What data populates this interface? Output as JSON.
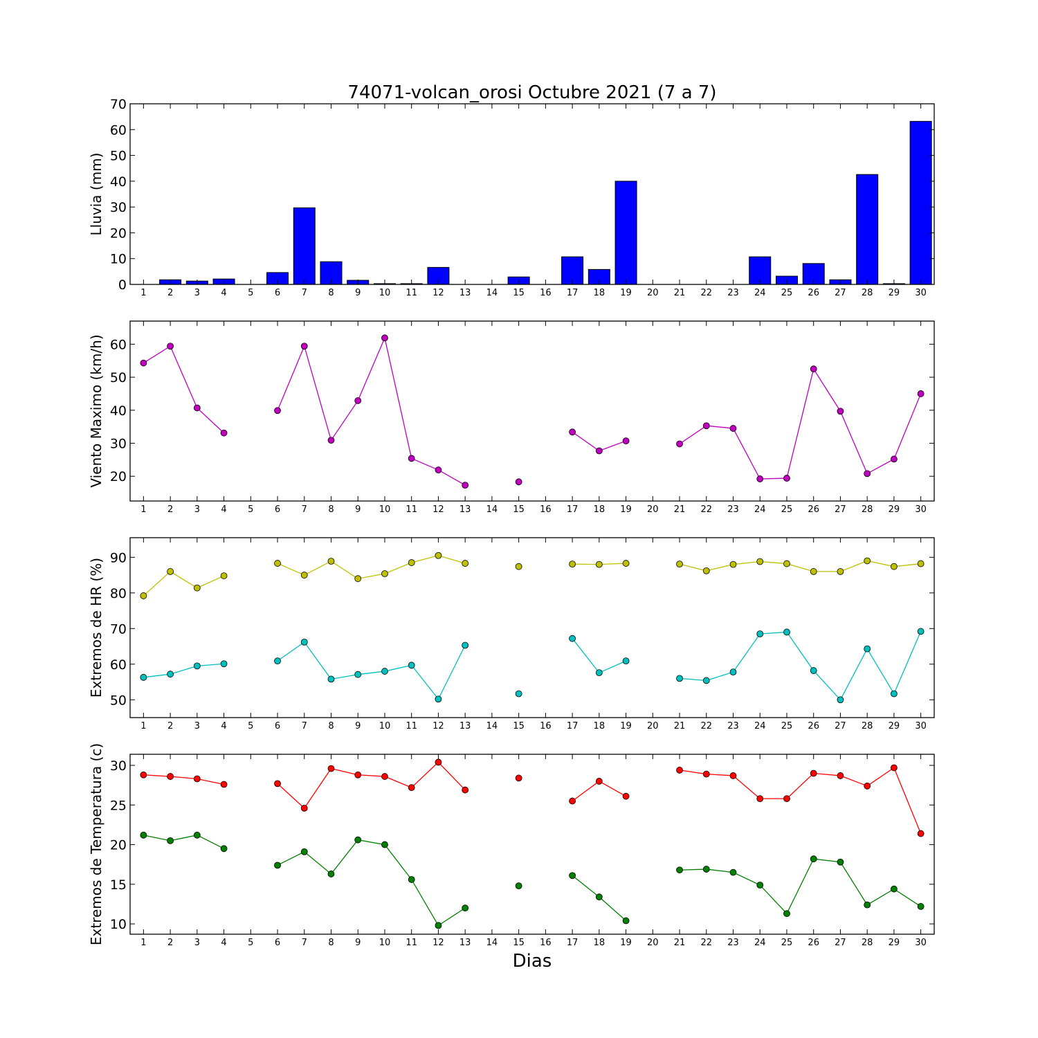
{
  "figure": {
    "title": "74071-volcan_orosi Octubre 2021  (7 a 7)",
    "xlabel": "Dias"
  },
  "chart_data": [
    {
      "type": "bar",
      "ylabel": "Lluvia (mm)",
      "ylim": [
        0,
        70
      ],
      "yticks": [
        0,
        10,
        20,
        30,
        40,
        50,
        60,
        70
      ],
      "xlim": [
        0.5,
        30.5
      ],
      "categories": [
        1,
        2,
        3,
        4,
        5,
        6,
        7,
        8,
        9,
        10,
        11,
        12,
        13,
        14,
        15,
        16,
        17,
        18,
        19,
        20,
        21,
        22,
        23,
        24,
        25,
        26,
        27,
        28,
        29,
        30
      ],
      "values": [
        0,
        1.8,
        1.3,
        2.1,
        0,
        4.6,
        29.7,
        8.8,
        1.6,
        0.3,
        0.3,
        6.6,
        0,
        0,
        2.9,
        0,
        10.7,
        5.8,
        40.0,
        0,
        0,
        0,
        0,
        10.7,
        3.2,
        8.1,
        1.8,
        42.6,
        0.3,
        63.2
      ],
      "color": "#0000ff"
    },
    {
      "type": "line",
      "ylabel": "Viento Maximo (km/h)",
      "ylim": [
        12.5,
        67
      ],
      "yticks": [
        20,
        30,
        40,
        50,
        60
      ],
      "xlim": [
        0.5,
        30.5
      ],
      "x": [
        1,
        2,
        3,
        4,
        5,
        6,
        7,
        8,
        9,
        10,
        11,
        12,
        13,
        14,
        15,
        16,
        17,
        18,
        19,
        20,
        21,
        22,
        23,
        24,
        25,
        26,
        27,
        28,
        29,
        30
      ],
      "series": [
        {
          "color": "#bf00bf",
          "values": [
            54.3,
            59.4,
            40.7,
            33.1,
            null,
            39.9,
            59.4,
            30.9,
            42.9,
            61.9,
            25.4,
            21.9,
            17.3,
            null,
            18.3,
            null,
            33.4,
            27.7,
            30.7,
            null,
            29.8,
            35.3,
            34.5,
            19.2,
            19.4,
            52.5,
            39.7,
            20.8,
            25.2,
            45.0
          ]
        }
      ]
    },
    {
      "type": "line",
      "ylabel": "Extremos de HR (%)",
      "ylim": [
        45,
        95.5
      ],
      "yticks": [
        50,
        60,
        70,
        80,
        90
      ],
      "xlim": [
        0.5,
        30.5
      ],
      "x": [
        1,
        2,
        3,
        4,
        5,
        6,
        7,
        8,
        9,
        10,
        11,
        12,
        13,
        14,
        15,
        16,
        17,
        18,
        19,
        20,
        21,
        22,
        23,
        24,
        25,
        26,
        27,
        28,
        29,
        30
      ],
      "series": [
        {
          "color": "#bfbf00",
          "values": [
            79.2,
            86.0,
            81.4,
            84.8,
            null,
            88.3,
            85.0,
            88.9,
            84.0,
            85.4,
            88.5,
            90.5,
            88.3,
            null,
            87.4,
            null,
            88.1,
            88.0,
            88.3,
            null,
            88.1,
            86.2,
            88.0,
            88.8,
            88.2,
            86.0,
            86.0,
            89.0,
            87.4,
            88.2
          ]
        },
        {
          "color": "#00bfbf",
          "values": [
            56.3,
            57.2,
            59.5,
            60.1,
            null,
            60.9,
            66.2,
            55.8,
            57.1,
            58.0,
            59.7,
            50.2,
            65.3,
            null,
            51.7,
            null,
            67.2,
            57.6,
            60.9,
            null,
            56.0,
            55.4,
            57.8,
            68.5,
            69.0,
            58.2,
            50.0,
            64.3,
            51.7,
            69.2
          ]
        }
      ]
    },
    {
      "type": "line",
      "ylabel": "Extremos de Temperatura (c)",
      "ylim": [
        8.7,
        31.4
      ],
      "yticks": [
        10,
        15,
        20,
        25,
        30
      ],
      "xlim": [
        0.5,
        30.5
      ],
      "x": [
        1,
        2,
        3,
        4,
        5,
        6,
        7,
        8,
        9,
        10,
        11,
        12,
        13,
        14,
        15,
        16,
        17,
        18,
        19,
        20,
        21,
        22,
        23,
        24,
        25,
        26,
        27,
        28,
        29,
        30
      ],
      "series": [
        {
          "color": "#ff0000",
          "values": [
            28.8,
            28.6,
            28.3,
            27.6,
            null,
            27.7,
            24.6,
            29.6,
            28.8,
            28.6,
            27.2,
            30.4,
            26.9,
            null,
            28.4,
            null,
            25.5,
            28.0,
            26.1,
            null,
            29.4,
            28.9,
            28.7,
            25.8,
            25.8,
            29.0,
            28.7,
            27.4,
            29.7,
            21.4
          ]
        },
        {
          "color": "#008000",
          "values": [
            21.2,
            20.5,
            21.2,
            19.5,
            null,
            17.4,
            19.1,
            16.3,
            20.6,
            20.0,
            15.6,
            9.8,
            12.0,
            null,
            14.8,
            null,
            16.1,
            13.4,
            10.4,
            null,
            16.8,
            16.9,
            16.5,
            14.9,
            11.3,
            18.2,
            17.8,
            12.4,
            14.4,
            12.2
          ]
        }
      ]
    }
  ]
}
